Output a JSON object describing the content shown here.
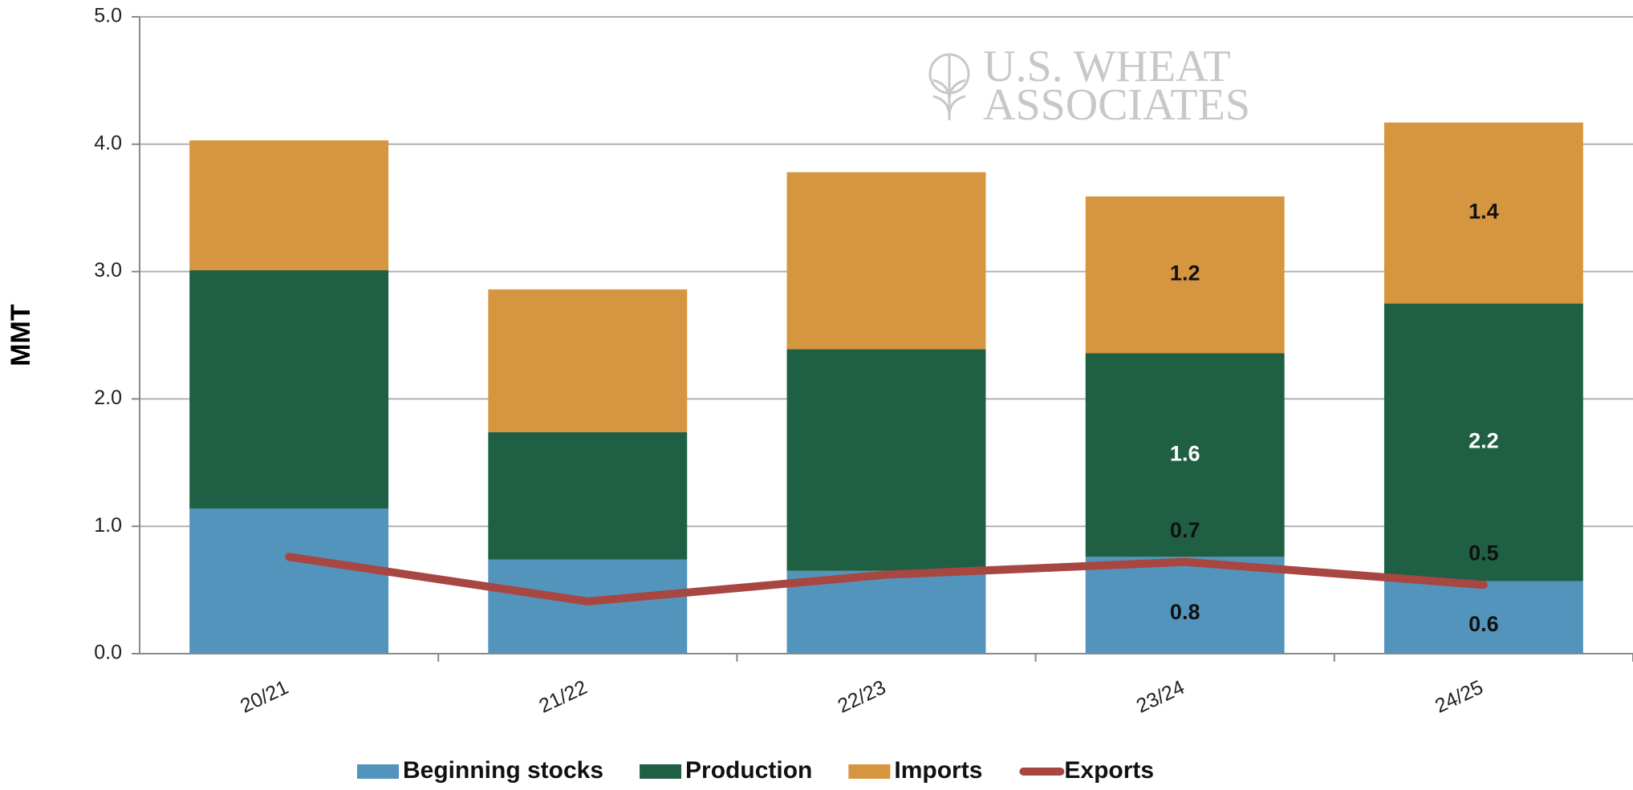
{
  "chart_data": {
    "type": "stacked-bar-line",
    "y_label": "MMT",
    "watermark": [
      "U.S. WHEAT",
      "ASSOCIATES"
    ],
    "categories": [
      "20/21",
      "21/22",
      "22/23",
      "23/24",
      "24/25"
    ],
    "ylim": [
      0,
      5
    ],
    "yticks": [
      {
        "value": 0,
        "label": "0.0"
      },
      {
        "value": 1,
        "label": "1.0"
      },
      {
        "value": 2,
        "label": "2.0"
      },
      {
        "value": 3,
        "label": "3.0"
      },
      {
        "value": 4,
        "label": "4.0"
      },
      {
        "value": 5,
        "label": "5.0"
      }
    ],
    "grid": true,
    "series": [
      {
        "name": "Beginning stocks",
        "type": "bar",
        "color": "#5294bb",
        "label_color": "#111111",
        "values": [
          1.14,
          0.74,
          0.65,
          0.76,
          0.57
        ],
        "value_labels": [
          null,
          null,
          null,
          "0.8",
          "0.6"
        ]
      },
      {
        "name": "Production",
        "type": "bar",
        "color": "#1f6045",
        "label_color": "#ffffff",
        "values": [
          1.87,
          1.0,
          1.74,
          1.6,
          2.18
        ],
        "value_labels": [
          null,
          null,
          null,
          "1.6",
          "2.2"
        ]
      },
      {
        "name": "Imports",
        "type": "bar",
        "color": "#d6963f",
        "label_color": "#111111",
        "values": [
          1.02,
          1.12,
          1.39,
          1.23,
          1.42
        ],
        "value_labels": [
          null,
          null,
          null,
          "1.2",
          "1.4"
        ]
      },
      {
        "name": "Exports",
        "type": "line",
        "color": "#a84642",
        "label_color": "#111111",
        "values": [
          0.76,
          0.41,
          0.62,
          0.72,
          0.54
        ],
        "value_labels": [
          null,
          null,
          null,
          "0.7",
          "0.5"
        ]
      }
    ]
  }
}
